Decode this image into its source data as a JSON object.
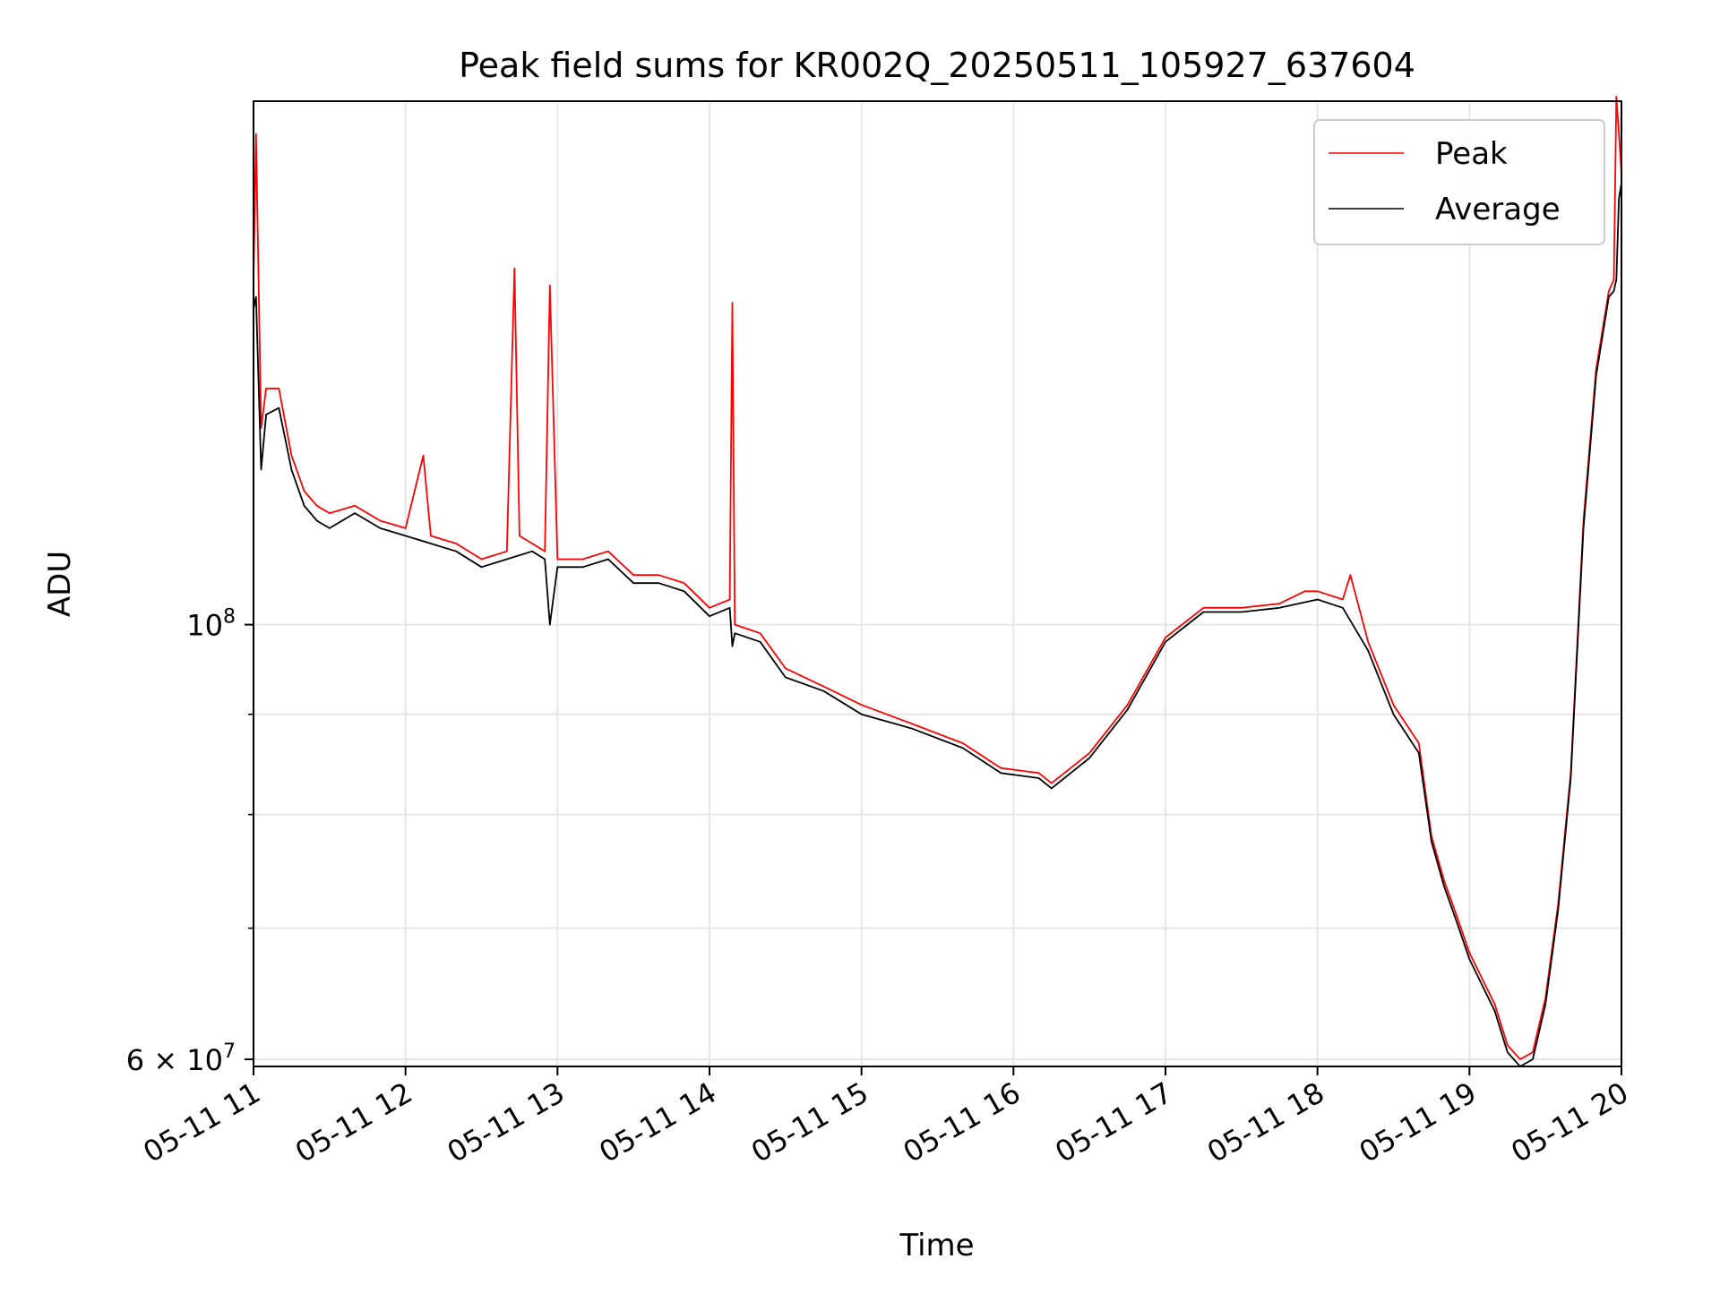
{
  "chart_data": {
    "type": "line",
    "title": "Peak field sums for KR002Q_20250511_105927_637604",
    "xlabel": "Time",
    "ylabel": "ADU",
    "yscale": "log",
    "xlim": [
      "05-11 11:00",
      "05-11 20:00"
    ],
    "ylim": [
      59500000,
      185000000
    ],
    "x_ticks": [
      "05-11 11",
      "05-11 12",
      "05-11 13",
      "05-11 14",
      "05-11 15",
      "05-11 16",
      "05-11 17",
      "05-11 18",
      "05-11 19",
      "05-11 20"
    ],
    "y_major_ticks": [
      {
        "value": 100000000,
        "base": "10",
        "exp": "8"
      },
      {
        "value": 60000000,
        "base": "6 × 10",
        "exp": "7"
      }
    ],
    "y_minor_ticks": [
      70000000,
      80000000,
      90000000
    ],
    "grid": true,
    "legend": {
      "position": "top-right",
      "entries": [
        "Peak",
        "Average"
      ]
    },
    "colors": {
      "Peak": "#ff0000",
      "Average": "#000000",
      "grid": "#e6e6e6"
    },
    "series": [
      {
        "name": "Peak",
        "x": [
          "05-11 11:00",
          "05-11 11:01",
          "05-11 11:03",
          "05-11 11:05",
          "05-11 11:10",
          "05-11 11:15",
          "05-11 11:20",
          "05-11 11:25",
          "05-11 11:30",
          "05-11 11:40",
          "05-11 11:50",
          "05-11 12:00",
          "05-11 12:07",
          "05-11 12:10",
          "05-11 12:20",
          "05-11 12:30",
          "05-11 12:40",
          "05-11 12:43",
          "05-11 12:45",
          "05-11 12:50",
          "05-11 12:55",
          "05-11 12:57",
          "05-11 13:00",
          "05-11 13:10",
          "05-11 13:20",
          "05-11 13:30",
          "05-11 13:40",
          "05-11 13:50",
          "05-11 14:00",
          "05-11 14:08",
          "05-11 14:09",
          "05-11 14:10",
          "05-11 14:20",
          "05-11 14:30",
          "05-11 14:45",
          "05-11 15:00",
          "05-11 15:20",
          "05-11 15:40",
          "05-11 15:55",
          "05-11 16:10",
          "05-11 16:15",
          "05-11 16:30",
          "05-11 16:45",
          "05-11 17:00",
          "05-11 17:15",
          "05-11 17:30",
          "05-11 17:45",
          "05-11 17:55",
          "05-11 18:00",
          "05-11 18:10",
          "05-11 18:13",
          "05-11 18:20",
          "05-11 18:30",
          "05-11 18:40",
          "05-11 18:45",
          "05-11 18:50",
          "05-11 18:55",
          "05-11 19:00",
          "05-11 19:10",
          "05-11 19:15",
          "05-11 19:20",
          "05-11 19:25",
          "05-11 19:30",
          "05-11 19:35",
          "05-11 19:40",
          "05-11 19:45",
          "05-11 19:50",
          "05-11 19:55",
          "05-11 19:57",
          "05-11 19:58",
          "05-11 19:59",
          "05-11 20:00"
        ],
        "y": [
          150000000,
          178000000,
          126000000,
          132000000,
          132000000,
          122000000,
          117000000,
          115000000,
          114000000,
          115000000,
          113000000,
          112000000,
          122000000,
          111000000,
          110000000,
          108000000,
          109000000,
          152000000,
          111000000,
          110000000,
          109000000,
          149000000,
          108000000,
          108000000,
          109000000,
          106000000,
          106000000,
          105000000,
          102000000,
          103000000,
          146000000,
          100000000,
          99000000,
          95000000,
          93000000,
          91000000,
          89000000,
          87000000,
          84500000,
          84000000,
          83000000,
          86000000,
          91000000,
          98500000,
          102000000,
          102000000,
          102500000,
          104000000,
          104000000,
          103000000,
          106000000,
          98000000,
          91000000,
          87000000,
          78000000,
          74000000,
          71000000,
          68000000,
          64000000,
          61000000,
          60000000,
          60500000,
          64500000,
          72000000,
          84000000,
          113000000,
          135000000,
          148000000,
          150000000,
          186000000,
          178000000,
          170000000
        ]
      },
      {
        "name": "Average",
        "x": [
          "05-11 11:00",
          "05-11 11:01",
          "05-11 11:03",
          "05-11 11:05",
          "05-11 11:10",
          "05-11 11:15",
          "05-11 11:20",
          "05-11 11:25",
          "05-11 11:30",
          "05-11 11:40",
          "05-11 11:50",
          "05-11 12:00",
          "05-11 12:10",
          "05-11 12:20",
          "05-11 12:30",
          "05-11 12:40",
          "05-11 12:50",
          "05-11 12:55",
          "05-11 12:57",
          "05-11 13:00",
          "05-11 13:10",
          "05-11 13:20",
          "05-11 13:30",
          "05-11 13:40",
          "05-11 13:50",
          "05-11 14:00",
          "05-11 14:08",
          "05-11 14:09",
          "05-11 14:10",
          "05-11 14:20",
          "05-11 14:30",
          "05-11 14:45",
          "05-11 15:00",
          "05-11 15:20",
          "05-11 15:40",
          "05-11 15:55",
          "05-11 16:10",
          "05-11 16:15",
          "05-11 16:30",
          "05-11 16:45",
          "05-11 17:00",
          "05-11 17:15",
          "05-11 17:30",
          "05-11 17:45",
          "05-11 18:00",
          "05-11 18:10",
          "05-11 18:20",
          "05-11 18:30",
          "05-11 18:40",
          "05-11 18:45",
          "05-11 18:50",
          "05-11 18:55",
          "05-11 19:00",
          "05-11 19:10",
          "05-11 19:15",
          "05-11 19:20",
          "05-11 19:25",
          "05-11 19:30",
          "05-11 19:35",
          "05-11 19:40",
          "05-11 19:45",
          "05-11 19:50",
          "05-11 19:55",
          "05-11 19:57",
          "05-11 19:58",
          "05-11 19:59",
          "05-11 20:00"
        ],
        "y": [
          145000000,
          147000000,
          120000000,
          128000000,
          129000000,
          120000000,
          115000000,
          113000000,
          112000000,
          114000000,
          112000000,
          111000000,
          110000000,
          109000000,
          107000000,
          108000000,
          109000000,
          108000000,
          100000000,
          107000000,
          107000000,
          108000000,
          105000000,
          105000000,
          104000000,
          101000000,
          102000000,
          97500000,
          99000000,
          98000000,
          94000000,
          92500000,
          90000000,
          88500000,
          86500000,
          84000000,
          83500000,
          82500000,
          85500000,
          90500000,
          98000000,
          101500000,
          101500000,
          102000000,
          103000000,
          102000000,
          97000000,
          90000000,
          86000000,
          77500000,
          73500000,
          70500000,
          67500000,
          63500000,
          60500000,
          59500000,
          60000000,
          64000000,
          71500000,
          83500000,
          112000000,
          134000000,
          147000000,
          148000000,
          150000000,
          165000000,
          168000000
        ]
      }
    ]
  }
}
